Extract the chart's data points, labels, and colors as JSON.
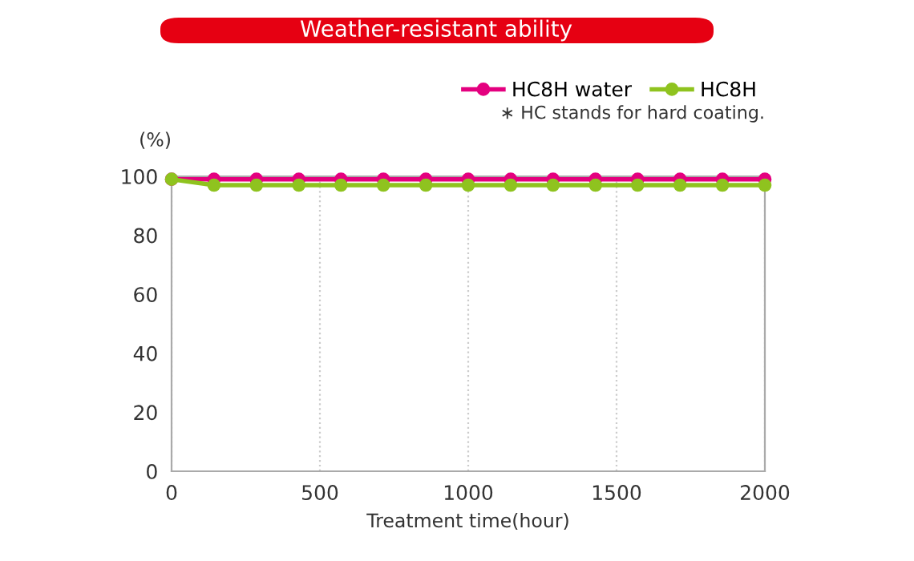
{
  "chart_data": {
    "type": "line",
    "title": "Weather-resistant ability",
    "xlabel": "Treatment time(hour)",
    "ylabel": "(%)",
    "x": [
      0,
      143,
      286,
      429,
      571,
      714,
      857,
      1000,
      1143,
      1286,
      1429,
      1571,
      1714,
      1857,
      2000
    ],
    "series": [
      {
        "name": "HC8H water",
        "color": "#e4007f",
        "values": [
          99,
          99,
          99,
          99,
          99,
          99,
          99,
          99,
          99,
          99,
          99,
          99,
          99,
          99,
          99
        ]
      },
      {
        "name": "HC8H",
        "color": "#8fc31f",
        "values": [
          99,
          97,
          97,
          97,
          97,
          97,
          97,
          97,
          97,
          97,
          97,
          97,
          97,
          97,
          97
        ]
      }
    ],
    "xlim": [
      0,
      2000
    ],
    "xticks": [
      0,
      500,
      1000,
      1500,
      2000
    ],
    "ylim": [
      0,
      100
    ],
    "yticks": [
      0,
      20,
      40,
      60,
      80,
      100
    ],
    "grid": "x",
    "legend": "top right",
    "marker": "circle",
    "line_style": "solid",
    "annotations": [
      "∗ HC stands for hard coating."
    ]
  }
}
